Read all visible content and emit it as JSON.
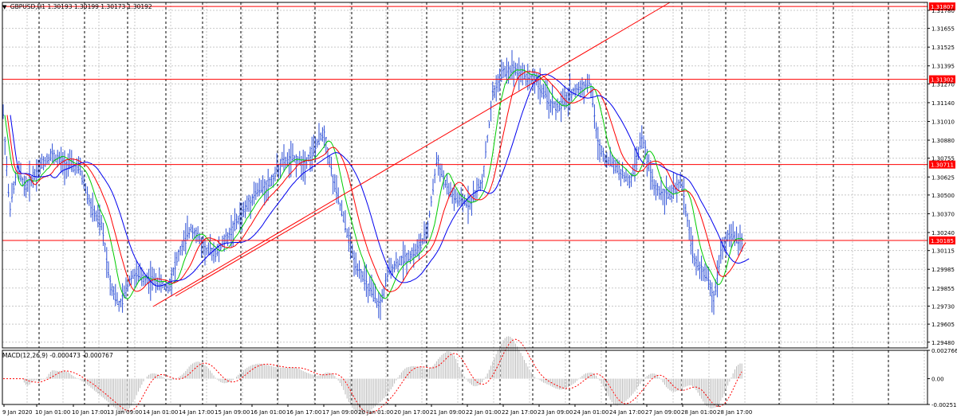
{
  "header": {
    "symbol": "GBPUSD,H1",
    "ohlc": "1.30193 1.30199 1.30173 1.30192"
  },
  "price_axis": {
    "ticks": [
      "1.31780",
      "1.31655",
      "1.31525",
      "1.31395",
      "1.31270",
      "1.31140",
      "1.31010",
      "1.30880",
      "1.30755",
      "1.30625",
      "1.30500",
      "1.30370",
      "1.30240",
      "1.30115",
      "1.29985",
      "1.29855",
      "1.29730",
      "1.29605",
      "1.29480"
    ],
    "levels": [
      "1.31807",
      "1.31302",
      "1.30711",
      "1.30185"
    ],
    "level_color": "#ff0000"
  },
  "time_axis": {
    "labels": [
      "9 Jan 2020",
      "10 Jan 01:00",
      "10 Jan 17:00",
      "13 Jan 09:00",
      "14 Jan 01:00",
      "14 Jan 17:00",
      "15 Jan 09:00",
      "16 Jan 01:00",
      "16 Jan 17:00",
      "17 Jan 09:00",
      "20 Jan 01:00",
      "20 Jan 17:00",
      "21 Jan 09:00",
      "22 Jan 01:00",
      "22 Jan 17:00",
      "23 Jan 09:00",
      "24 Jan 01:00",
      "24 Jan 17:00",
      "27 Jan 09:00",
      "28 Jan 01:00",
      "28 Jan 17:00"
    ]
  },
  "macd": {
    "label": "MACD(12,26,9) -0.000473 -0.000767",
    "ticks": [
      "0.002766",
      "0.00",
      "-0.002518"
    ]
  },
  "colors": {
    "bars": "#2c4fd6",
    "ma_fast": "#00cc00",
    "ma_mid": "#ff0000",
    "ma_slow": "#0000ee",
    "trendline": "#ff0000",
    "grid": "#c8c8c8",
    "separator": "#000000",
    "macd_hist": "#b8b8b8",
    "macd_signal": "#ff0000"
  }
}
